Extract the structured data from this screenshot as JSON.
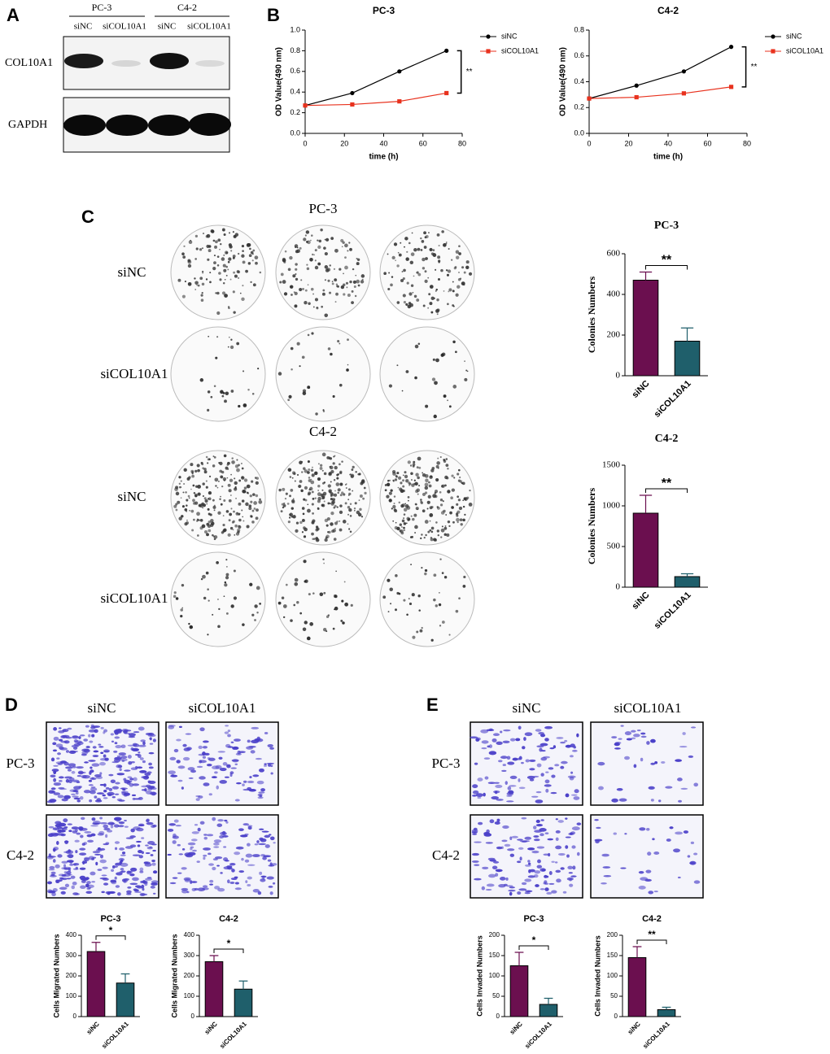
{
  "panel_labels": [
    "A",
    "B",
    "C",
    "D",
    "E"
  ],
  "blot": {
    "groups": [
      "PC-3",
      "C4-2"
    ],
    "lanes": [
      "siNC",
      "siCOL10A1",
      "siNC",
      "siCOL10A1"
    ],
    "proteins": [
      "COL10A1",
      "GAPDH"
    ]
  },
  "colony": {
    "cell_lines": [
      "PC-3",
      "C4-2"
    ],
    "rows": [
      "siNC",
      "siCOL10A1",
      "siNC",
      "siCOL10A1"
    ]
  },
  "migration": {
    "columns": [
      "siNC",
      "siCOL10A1"
    ],
    "rows": [
      "PC-3",
      "C4-2"
    ]
  },
  "invasion": {
    "columns": [
      "siNC",
      "siCOL10A1"
    ],
    "rows": [
      "PC-3",
      "C4-2"
    ]
  },
  "chart_data": [
    {
      "type": "line",
      "title": "PC-3",
      "x_label": "time (h)",
      "y_label": "OD Value(490 nm)",
      "annotation": "**",
      "x": [
        0,
        24,
        48,
        72
      ],
      "series": [
        {
          "name": "siNC",
          "color": "#000000",
          "values": [
            0.27,
            0.39,
            0.6,
            0.8
          ]
        },
        {
          "name": "siCOL10A1",
          "color": "#e8321e",
          "values": [
            0.27,
            0.28,
            0.31,
            0.39
          ]
        }
      ],
      "xlim": [
        0,
        80
      ],
      "xticks": [
        0,
        20,
        40,
        60,
        80
      ],
      "ylim": [
        0,
        1
      ],
      "yticks": [
        {
          "value": 0,
          "label": "0.0"
        },
        0.2,
        0.4,
        0.6,
        0.8,
        {
          "value": 1,
          "label": "1.0"
        }
      ]
    },
    {
      "type": "line",
      "title": "C4-2",
      "x_label": "time (h)",
      "y_label": "OD Value(490 nm)",
      "annotation": "**",
      "x": [
        0,
        24,
        48,
        72
      ],
      "series": [
        {
          "name": "siNC",
          "color": "#000000",
          "values": [
            0.27,
            0.37,
            0.48,
            0.67
          ]
        },
        {
          "name": "siCOL10A1",
          "color": "#e8321e",
          "values": [
            0.27,
            0.28,
            0.31,
            0.36
          ]
        }
      ],
      "xlim": [
        0,
        80
      ],
      "xticks": [
        0,
        20,
        40,
        60,
        80
      ],
      "ylim": [
        0,
        0.8
      ],
      "yticks": [
        {
          "value": 0,
          "label": "0.0"
        },
        0.2,
        0.4,
        0.6,
        0.8
      ]
    },
    {
      "type": "bar",
      "title": "PC-3",
      "y_label": "Colonies Numbers",
      "annotation": "**",
      "categories": [
        "siNC",
        "siCOL10A1"
      ],
      "values": [
        470,
        170
      ],
      "errors": [
        40,
        65
      ],
      "colors": [
        "#6b0f4f",
        "#1f5f6b"
      ],
      "ylim": [
        0,
        600
      ],
      "yticks": [
        0,
        200,
        400,
        600
      ]
    },
    {
      "type": "bar",
      "title": "C4-2",
      "y_label": "Colonies Numbers",
      "annotation": "**",
      "categories": [
        "siNC",
        "siCOL10A1"
      ],
      "values": [
        910,
        130
      ],
      "errors": [
        220,
        35
      ],
      "colors": [
        "#6b0f4f",
        "#1f5f6b"
      ],
      "ylim": [
        0,
        1500
      ],
      "yticks": [
        0,
        500,
        1000,
        1500
      ]
    },
    {
      "type": "bar",
      "title": "PC-3",
      "y_label": "Cells Migrated Numbers",
      "annotation": "*",
      "categories": [
        "siNC",
        "siCOL10A1"
      ],
      "values": [
        320,
        165
      ],
      "errors": [
        45,
        45
      ],
      "colors": [
        "#6b0f4f",
        "#1f5f6b"
      ],
      "ylim": [
        0,
        400
      ],
      "yticks": [
        0,
        100,
        200,
        300,
        400
      ]
    },
    {
      "type": "bar",
      "title": "C4-2",
      "y_label": "Cells Migrated Numbers",
      "annotation": "*",
      "categories": [
        "siNC",
        "siCOL10A1"
      ],
      "values": [
        270,
        135
      ],
      "errors": [
        30,
        40
      ],
      "colors": [
        "#6b0f4f",
        "#1f5f6b"
      ],
      "ylim": [
        0,
        400
      ],
      "yticks": [
        0,
        100,
        200,
        300,
        400
      ]
    },
    {
      "type": "bar",
      "title": "PC-3",
      "y_label": "Cells Invaded Numbers",
      "annotation": "*",
      "categories": [
        "siNC",
        "siCOL10A1"
      ],
      "values": [
        125,
        30
      ],
      "errors": [
        33,
        15
      ],
      "colors": [
        "#6b0f4f",
        "#1f5f6b"
      ],
      "ylim": [
        0,
        200
      ],
      "yticks": [
        0,
        50,
        100,
        150,
        200
      ]
    },
    {
      "type": "bar",
      "title": "C4-2",
      "y_label": "Cells Invaded Numbers",
      "annotation": "**",
      "categories": [
        "siNC",
        "siCOL10A1"
      ],
      "values": [
        145,
        17
      ],
      "errors": [
        27,
        6
      ],
      "colors": [
        "#6b0f4f",
        "#1f5f6b"
      ],
      "ylim": [
        0,
        200
      ],
      "yticks": [
        0,
        50,
        100,
        150,
        200
      ]
    }
  ]
}
